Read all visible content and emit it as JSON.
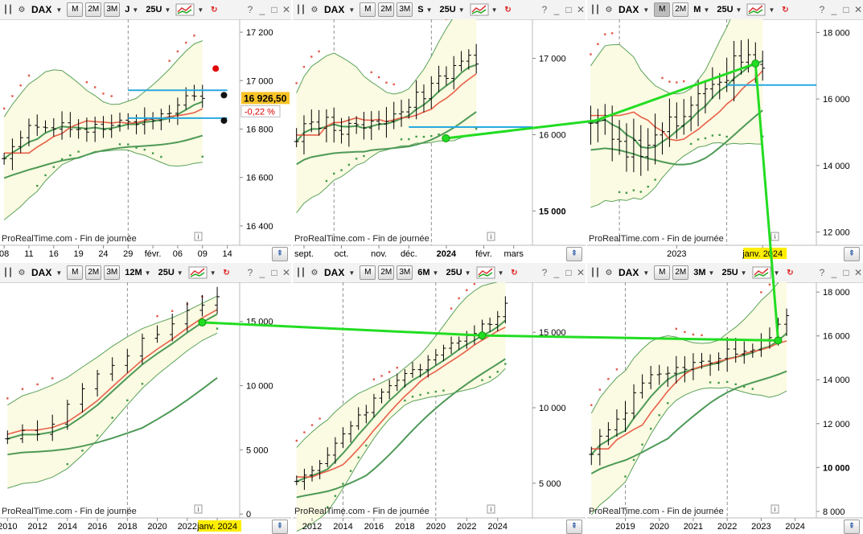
{
  "symbol": "DAX",
  "watermark": "ProRealTime.com - Fin de journée",
  "colors": {
    "band_fill": "#fbfae2",
    "band_line": "#5aa35a",
    "mid_line": "#4e9a57",
    "red_line": "#e8604a",
    "sar_red": "#e05a4a",
    "sar_green": "#3f9a4a",
    "blue_line": "#29a8e0",
    "arrow": "#22dd22",
    "highlight": "#ffee00"
  },
  "icons": {
    "chart_type": "bar-chart-icon",
    "settings": "gear-icon",
    "indicator": "indicator-chart-icon",
    "refresh": "refresh-icon",
    "info": "info-icon",
    "scroll": "scroll-up-icon"
  },
  "panels": [
    {
      "id": "daily",
      "tf_buttons": [
        {
          "label": "M",
          "active": false
        },
        {
          "label": "2M",
          "active": false
        },
        {
          "label": "3M",
          "active": false
        }
      ],
      "period": "J",
      "units": "25U",
      "chart_data": {
        "type": "bar",
        "ylim": [
          16320,
          17240
        ],
        "y_ticks": [
          {
            "v": 16400,
            "label": "16 400"
          },
          {
            "v": 16600,
            "label": "16 600"
          },
          {
            "v": 16800,
            "label": "16 800"
          },
          {
            "v": 17000,
            "label": "17 000"
          },
          {
            "v": 17200,
            "label": "17 200"
          }
        ],
        "x_ticks": [
          {
            "i": 0,
            "label": "08"
          },
          {
            "i": 3,
            "label": "11"
          },
          {
            "i": 6,
            "label": "16"
          },
          {
            "i": 9,
            "label": "19"
          },
          {
            "i": 12,
            "label": "24"
          },
          {
            "i": 15,
            "label": "29"
          },
          {
            "i": 18,
            "label": "févr."
          },
          {
            "i": 21,
            "label": "06"
          },
          {
            "i": 24,
            "label": "09"
          },
          {
            "i": 27,
            "label": "14"
          }
        ],
        "n_bars": 25,
        "n_slots": 29,
        "start": 16700,
        "end": 16926.5,
        "amp": 90,
        "band_w": 230,
        "red_lag": 3,
        "sar_n": 25,
        "vlines": [
          15
        ],
        "markers": [
          {
            "i": 24,
            "v": 16940,
            "color": "#111111"
          },
          {
            "i": 24,
            "v": 16835,
            "color": "#111111"
          },
          {
            "i": 23,
            "v": 17050,
            "color": "#e00000"
          }
        ],
        "hlines": [
          {
            "from": 15,
            "to": 27,
            "v": 16960
          },
          {
            "from": 15,
            "to": 27,
            "v": 16845
          }
        ],
        "price": "16 926,50",
        "change": "-0,22 %"
      }
    },
    {
      "id": "weekly",
      "tf_buttons": [
        {
          "label": "M",
          "active": false
        },
        {
          "label": "2M",
          "active": false
        },
        {
          "label": "3M",
          "active": false
        }
      ],
      "period": "S",
      "units": "25U",
      "chart_data": {
        "type": "bar",
        "ylim": [
          14550,
          17470
        ],
        "y_ticks": [
          {
            "v": 15000,
            "label": "15 000",
            "bold": true
          },
          {
            "v": 16000,
            "label": "16 000"
          },
          {
            "v": 17000,
            "label": "17 000"
          }
        ],
        "x_ticks": [
          {
            "i": 1,
            "label": "sept."
          },
          {
            "i": 6,
            "label": "oct."
          },
          {
            "i": 11,
            "label": "nov."
          },
          {
            "i": 15,
            "label": "déc."
          },
          {
            "i": 20,
            "label": "2024",
            "bold": true
          },
          {
            "i": 25,
            "label": "févr."
          },
          {
            "i": 29,
            "label": "mars"
          }
        ],
        "n_bars": 25,
        "n_slots": 32,
        "start": 15700,
        "end": 16926,
        "amp": 350,
        "band_w": 850,
        "red_lag": 3,
        "sar_n": 25,
        "vlines": [
          5,
          18
        ],
        "markers": [],
        "hlines": [
          {
            "from": 15,
            "to": 32,
            "v": 16100
          }
        ]
      }
    },
    {
      "id": "monthly",
      "tf_buttons": [
        {
          "label": "M",
          "active": true
        },
        {
          "label": "2M",
          "active": false
        }
      ],
      "period": "M",
      "units": "25U",
      "chart_data": {
        "type": "bar",
        "ylim": [
          11600,
          18300
        ],
        "y_ticks": [
          {
            "v": 12000,
            "label": "12 000"
          },
          {
            "v": 14000,
            "label": "14 000"
          },
          {
            "v": 16000,
            "label": "16 000"
          },
          {
            "v": 18000,
            "label": "18 000"
          }
        ],
        "x_ticks": [
          {
            "i": 12,
            "label": "2023"
          },
          {
            "i": 24,
            "label": "janv. 2024",
            "highlight": true
          }
        ],
        "n_bars": 25,
        "n_slots": 32,
        "start": 14400,
        "end": 16926,
        "amp": 1300,
        "band_w": 2300,
        "red_lag": 4,
        "sar_n": 25,
        "vlines": [
          4,
          19
        ],
        "markers": [],
        "hlines": [
          {
            "from": 19,
            "to": 32,
            "v": 16420
          }
        ]
      }
    },
    {
      "id": "yearly",
      "tf_buttons": [
        {
          "label": "M",
          "active": false
        },
        {
          "label": "2M",
          "active": false
        },
        {
          "label": "3M",
          "active": false
        }
      ],
      "period": "12M",
      "units": "25U",
      "chart_data": {
        "type": "bar",
        "ylim": [
          -300,
          17800
        ],
        "y_ticks": [
          {
            "v": 0,
            "label": "0"
          },
          {
            "v": 5000,
            "label": "5 000"
          },
          {
            "v": 10000,
            "label": "10 000"
          },
          {
            "v": 15000,
            "label": "15 000"
          }
        ],
        "x_ticks": [
          {
            "i": 0,
            "label": "2010"
          },
          {
            "i": 2,
            "label": "2012"
          },
          {
            "i": 4,
            "label": "2014"
          },
          {
            "i": 6,
            "label": "2016"
          },
          {
            "i": 8,
            "label": "2018"
          },
          {
            "i": 10,
            "label": "2020"
          },
          {
            "i": 12,
            "label": "2022"
          },
          {
            "i": 14,
            "label": "janv. 2024",
            "highlight": true
          }
        ],
        "n_bars": 15,
        "n_slots": 16,
        "start": 6000,
        "end": 16926,
        "amp": 1500,
        "band_w": 3500,
        "red_lag": 0,
        "sar_n": 15,
        "vlines": [
          8
        ],
        "markers": [],
        "hlines": []
      }
    },
    {
      "id": "semiannual",
      "tf_buttons": [
        {
          "label": "M",
          "active": false
        },
        {
          "label": "2M",
          "active": false
        },
        {
          "label": "3M",
          "active": false
        }
      ],
      "period": "6M",
      "units": "25U",
      "chart_data": {
        "type": "bar",
        "ylim": [
          2700,
          18100
        ],
        "y_ticks": [
          {
            "v": 5000,
            "label": "5 000"
          },
          {
            "v": 10000,
            "label": "10 000"
          },
          {
            "v": 15000,
            "label": "15 000"
          }
        ],
        "x_ticks": [
          {
            "i": 2,
            "label": "2012"
          },
          {
            "i": 6,
            "label": "2014"
          },
          {
            "i": 10,
            "label": "2016"
          },
          {
            "i": 14,
            "label": "2018"
          },
          {
            "i": 18,
            "label": "2020"
          },
          {
            "i": 22,
            "label": "2022"
          },
          {
            "i": 26,
            "label": "2024"
          }
        ],
        "n_bars": 28,
        "n_slots": 31,
        "start": 6200,
        "end": 16926,
        "amp": 1100,
        "band_w": 3000,
        "red_lag": 2,
        "sar_n": 28,
        "vlines": [
          6,
          18
        ],
        "markers": [],
        "hlines": []
      }
    },
    {
      "id": "quarterly",
      "tf_buttons": [
        {
          "label": "M",
          "active": false
        },
        {
          "label": "2M",
          "active": false
        }
      ],
      "period": "3M",
      "units": "25U",
      "chart_data": {
        "type": "bar",
        "ylim": [
          7700,
          18300
        ],
        "y_ticks": [
          {
            "v": 8000,
            "label": "8 000"
          },
          {
            "v": 10000,
            "label": "10 000",
            "bold": true
          },
          {
            "v": 12000,
            "label": "12 000"
          },
          {
            "v": 14000,
            "label": "14 000"
          },
          {
            "v": 16000,
            "label": "16 000"
          },
          {
            "v": 18000,
            "label": "18 000"
          }
        ],
        "x_ticks": [
          {
            "i": 4,
            "label": "2019"
          },
          {
            "i": 8,
            "label": "2020"
          },
          {
            "i": 12,
            "label": "2021"
          },
          {
            "i": 16,
            "label": "2022"
          },
          {
            "i": 20,
            "label": "2023"
          },
          {
            "i": 24,
            "label": "2024"
          }
        ],
        "n_bars": 24,
        "n_slots": 27,
        "start": 11900,
        "end": 16926,
        "amp": 1100,
        "band_w": 2500,
        "red_lag": 2,
        "sar_n": 24,
        "vlines": [
          4,
          16
        ],
        "markers": [],
        "hlines": []
      }
    }
  ]
}
